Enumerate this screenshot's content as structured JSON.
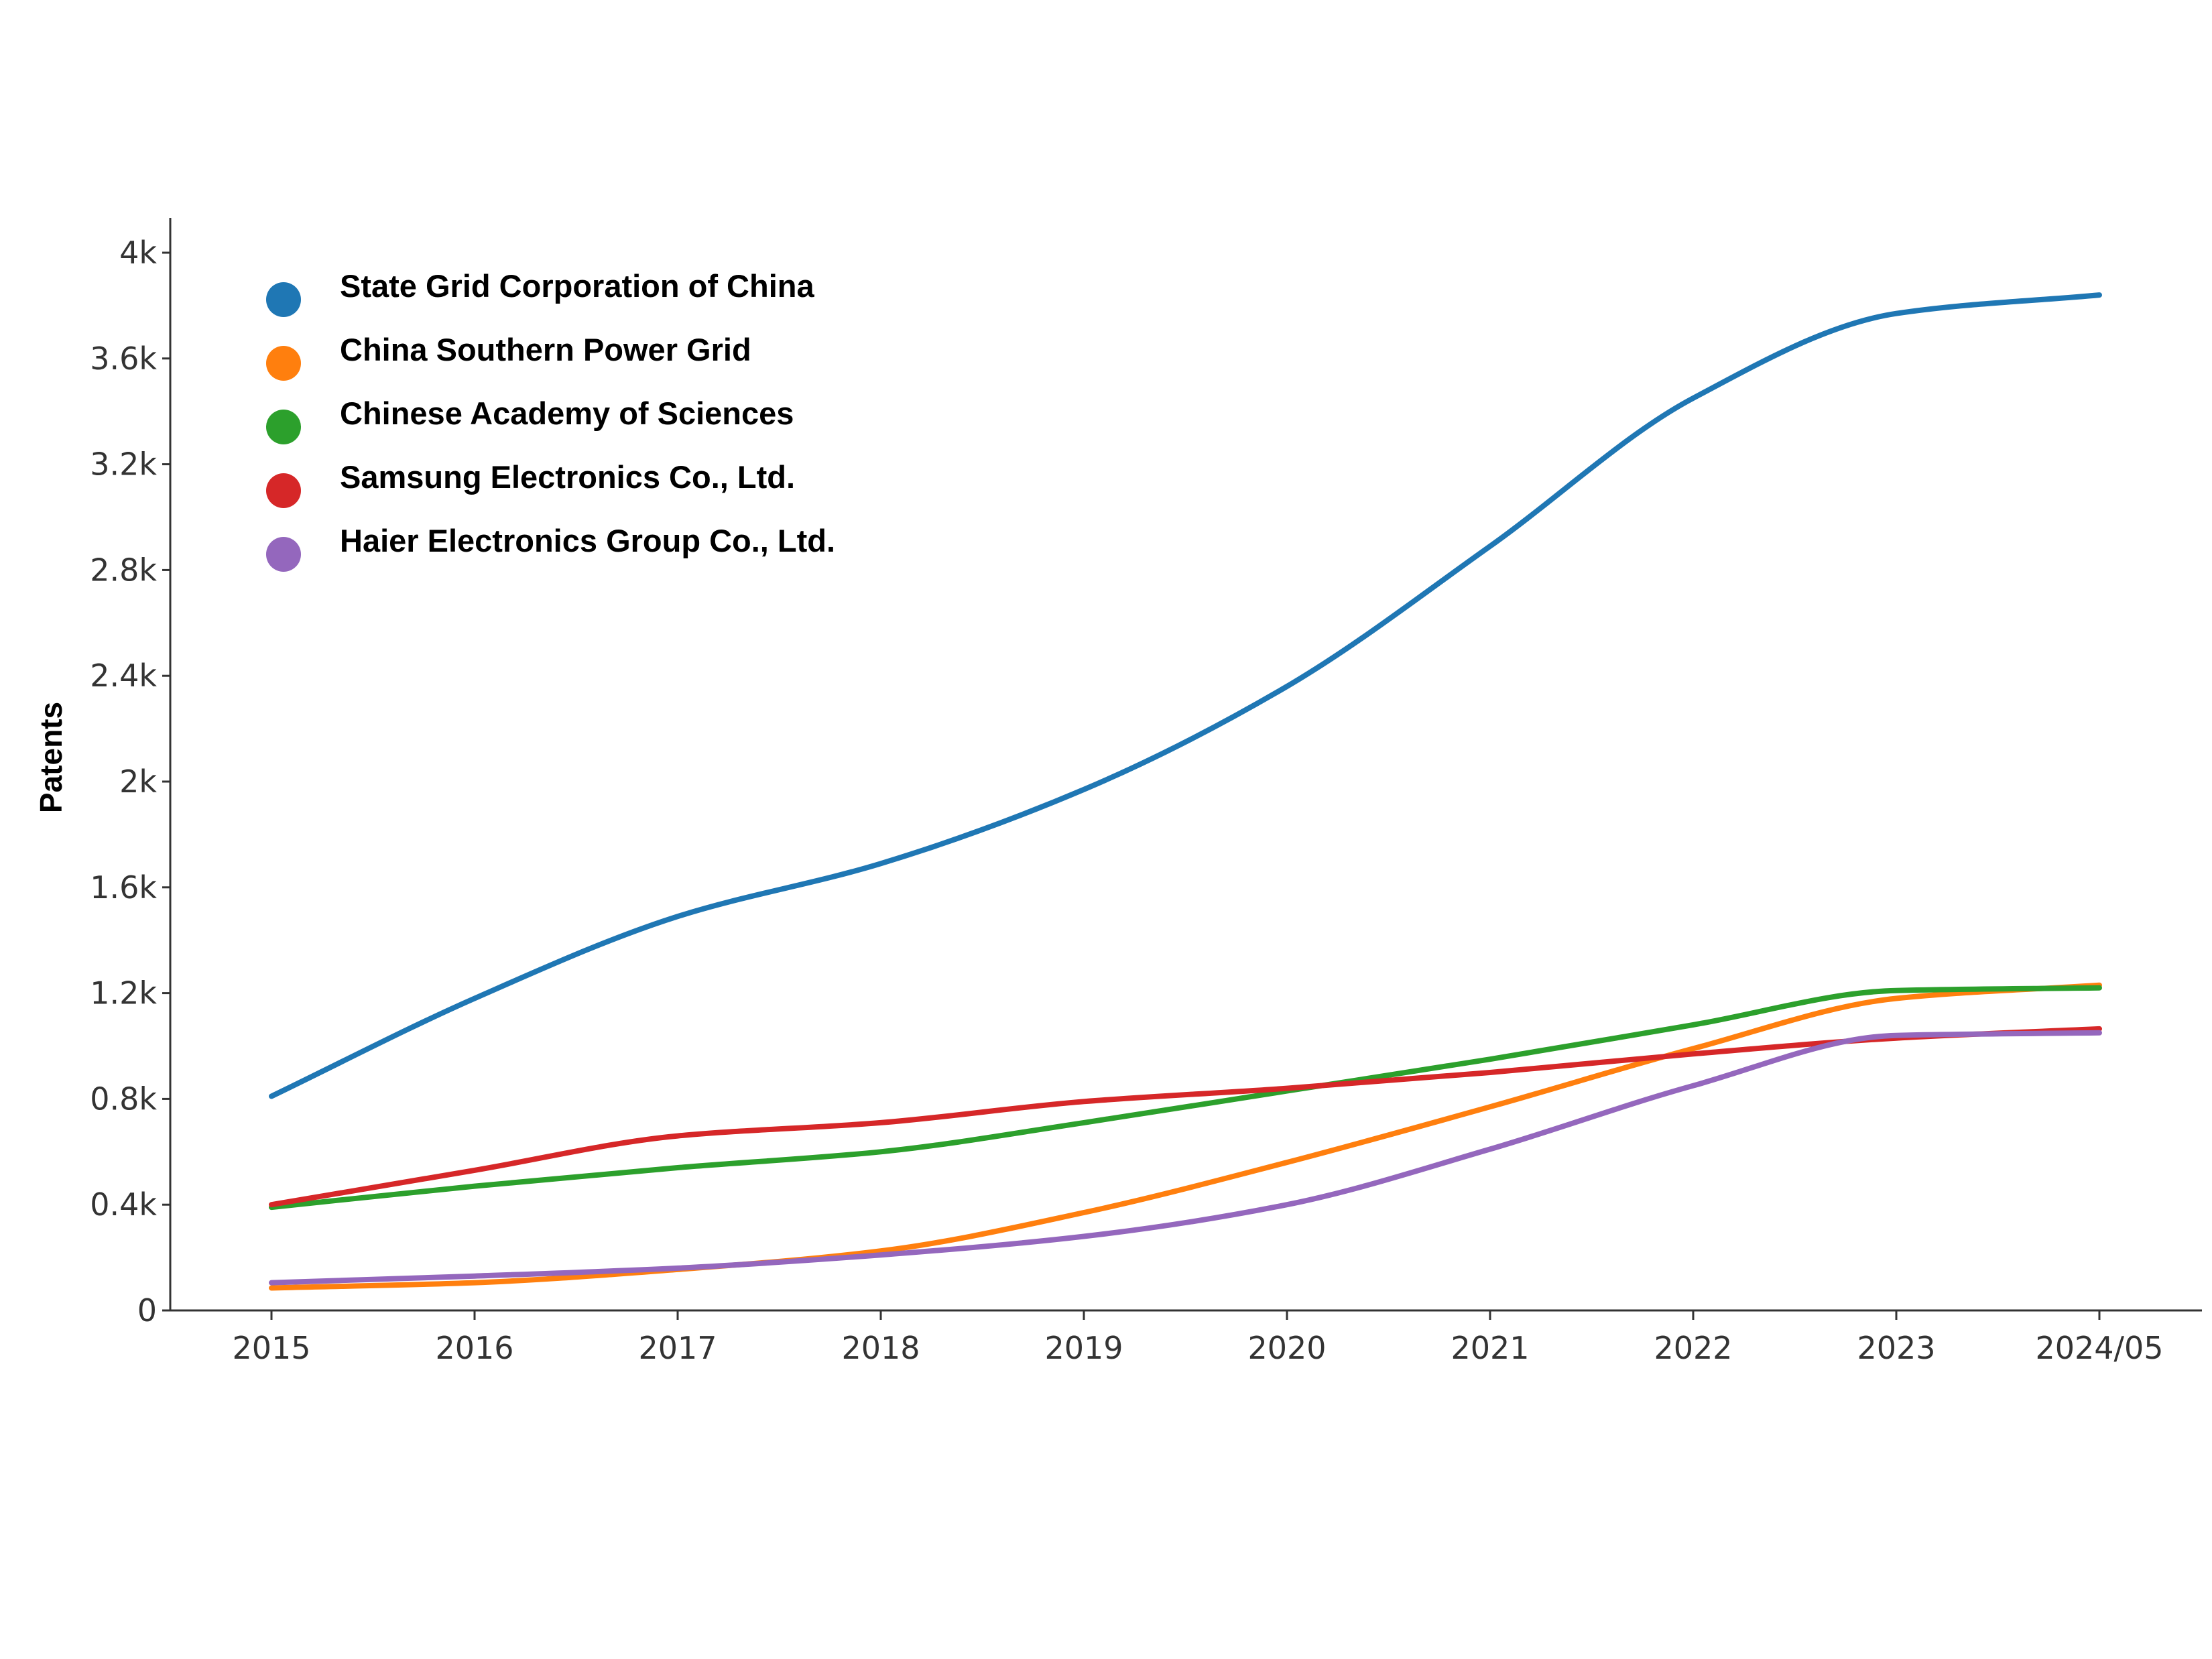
{
  "chart_data": {
    "type": "line",
    "title": "",
    "xlabel": "",
    "ylabel": "Patents",
    "categories": [
      "2015",
      "2016",
      "2017",
      "2018",
      "2019",
      "2020",
      "2021",
      "2022",
      "2023",
      "2024/05"
    ],
    "yticks": [
      {
        "value": 0,
        "label": "0"
      },
      {
        "value": 400,
        "label": "0.4k"
      },
      {
        "value": 800,
        "label": "0.8k"
      },
      {
        "value": 1200,
        "label": "1.2k"
      },
      {
        "value": 1600,
        "label": "1.6k"
      },
      {
        "value": 2000,
        "label": "2k"
      },
      {
        "value": 2400,
        "label": "2.4k"
      },
      {
        "value": 2800,
        "label": "2.8k"
      },
      {
        "value": 3200,
        "label": "3.2k"
      },
      {
        "value": 3600,
        "label": "3.6k"
      },
      {
        "value": 4000,
        "label": "4k"
      }
    ],
    "ylim": [
      0,
      4130
    ],
    "grid": false,
    "legend_position": "top-left",
    "series": [
      {
        "name": "State Grid Corporation of China",
        "color": "#1f77b4",
        "values": [
          810,
          1180,
          1490,
          1690,
          1970,
          2360,
          2890,
          3450,
          3770,
          3840
        ]
      },
      {
        "name": "China Southern Power Grid",
        "color": "#ff7f0e",
        "values": [
          85,
          105,
          155,
          225,
          370,
          560,
          770,
          990,
          1180,
          1230
        ]
      },
      {
        "name": "Chinese Academy of Sciences",
        "color": "#2ca02c",
        "values": [
          390,
          470,
          540,
          600,
          710,
          830,
          950,
          1080,
          1210,
          1220
        ]
      },
      {
        "name": "Samsung Electronics Co., Ltd.",
        "color": "#d62728",
        "values": [
          400,
          530,
          660,
          710,
          790,
          840,
          900,
          970,
          1030,
          1065
        ]
      },
      {
        "name": "Haier Electronics Group Co., Ltd.",
        "color": "#9467bd",
        "values": [
          105,
          130,
          160,
          210,
          280,
          400,
          610,
          850,
          1040,
          1050
        ]
      }
    ]
  }
}
